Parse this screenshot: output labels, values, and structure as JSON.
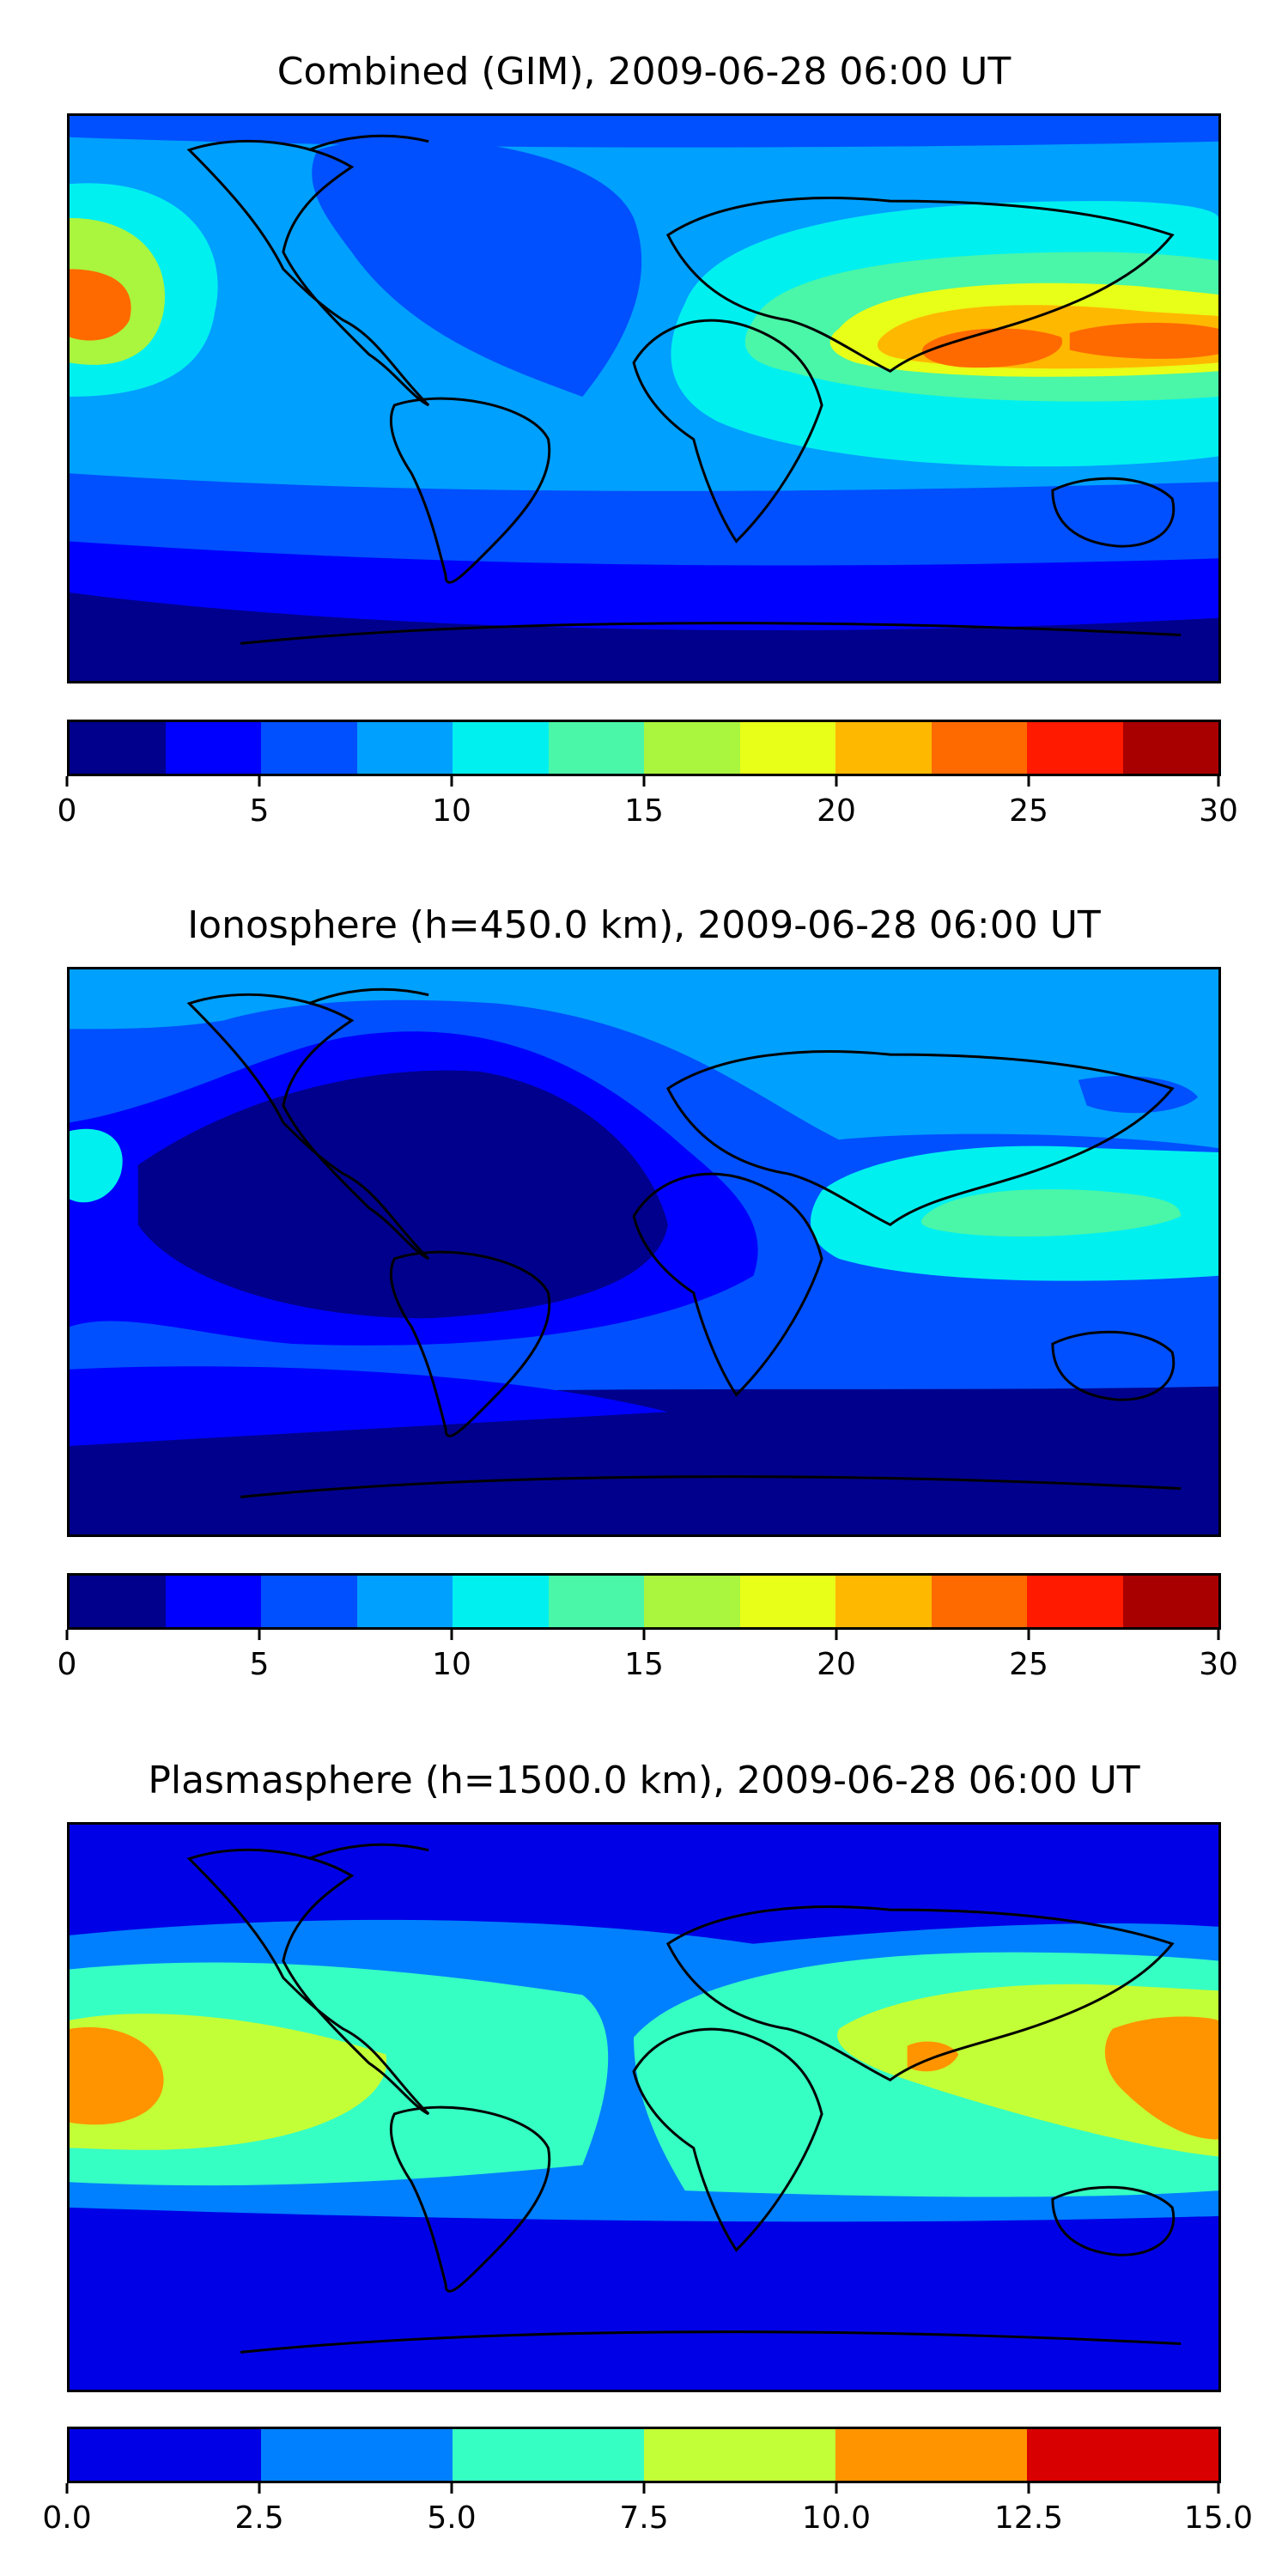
{
  "panels": [
    {
      "title": "Combined (GIM), 2009-06-28 06:00 UT",
      "colorbar": {
        "colors": [
          "#00008c",
          "#0000ff",
          "#0050ff",
          "#00a0ff",
          "#00f0f0",
          "#4af6a8",
          "#aaf53e",
          "#e8ff18",
          "#ffb800",
          "#ff6a00",
          "#ff1a00",
          "#a80000"
        ],
        "ticks": [
          "0",
          "5",
          "10",
          "15",
          "20",
          "25",
          "30"
        ]
      }
    },
    {
      "title": "Ionosphere  (h=450.0 km), 2009-06-28 06:00 UT",
      "colorbar": {
        "colors": [
          "#00008c",
          "#0000ff",
          "#0050ff",
          "#00a0ff",
          "#00f0f0",
          "#4af6a8",
          "#aaf53e",
          "#e8ff18",
          "#ffb800",
          "#ff6a00",
          "#ff1a00",
          "#a80000"
        ],
        "ticks": [
          "0",
          "5",
          "10",
          "15",
          "20",
          "25",
          "30"
        ]
      }
    },
    {
      "title": "Plasmasphere (h=1500.0 km), 2009-06-28 06:00 UT",
      "colorbar": {
        "colors": [
          "#0000e6",
          "#0080ff",
          "#36ffc4",
          "#c3ff36",
          "#ff9400",
          "#d80000"
        ],
        "ticks": [
          "0.0",
          "2.5",
          "5.0",
          "7.5",
          "10.0",
          "12.5",
          "15.0"
        ]
      }
    }
  ]
}
